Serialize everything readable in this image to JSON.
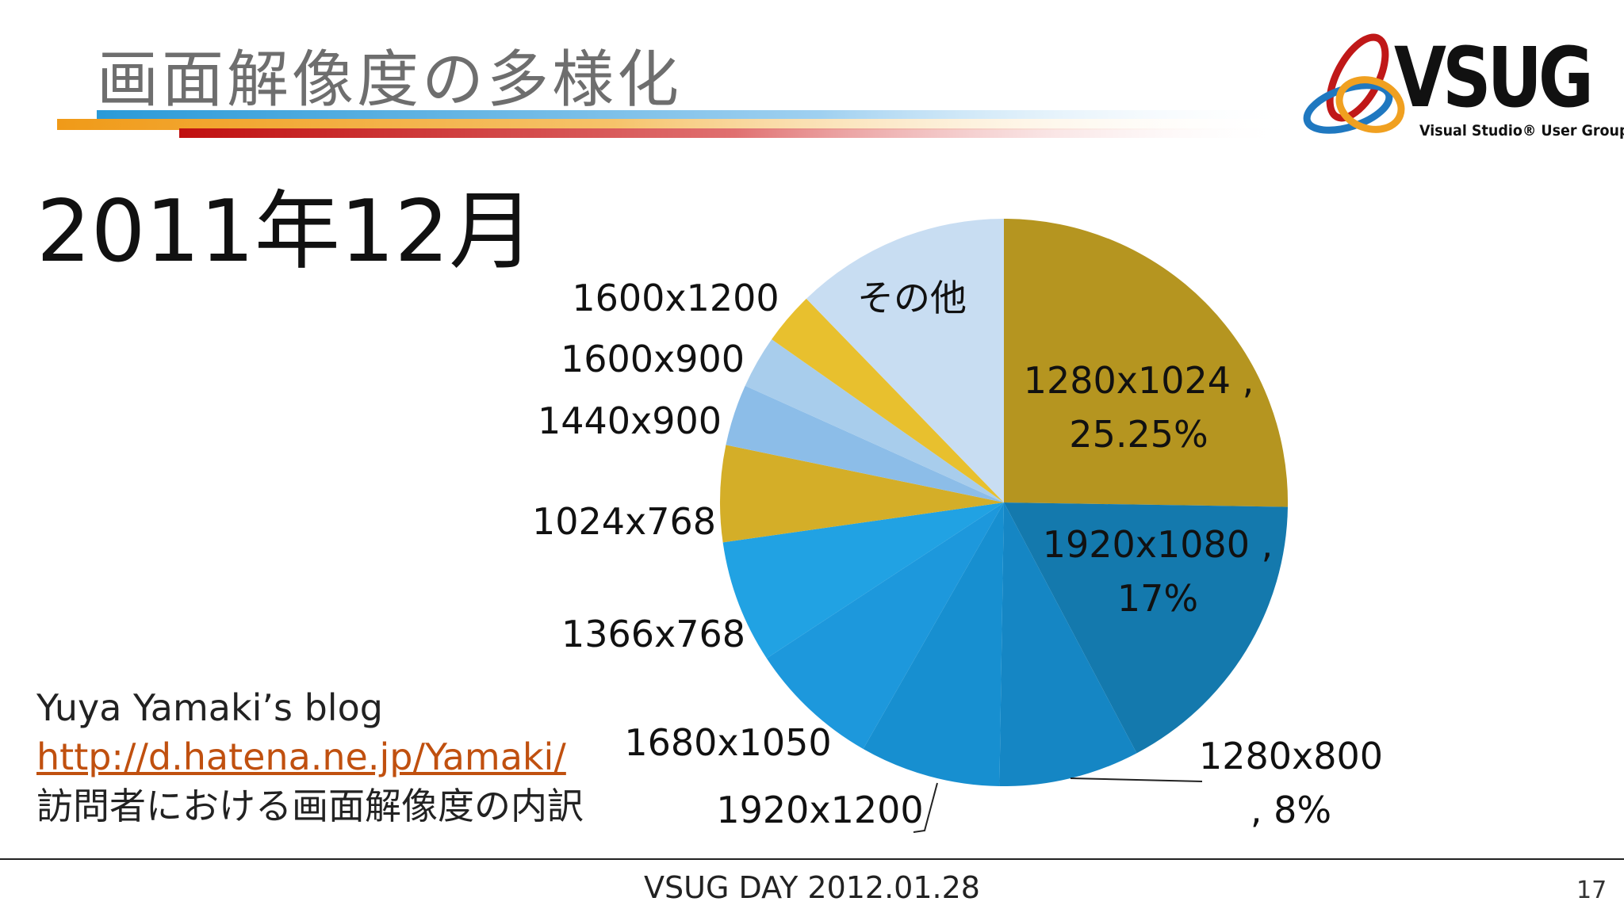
{
  "slide": {
    "title": "画面解像度の多様化",
    "subtitle": "2011年12月",
    "source_author": "Yuya Yamaki’s blog",
    "source_url": "http://d.hatena.ne.jp/Yamaki/",
    "source_caption": "訪問者における画面解像度の内訳",
    "footer": "VSUG DAY 2012.01.28",
    "page_number": "17"
  },
  "logo": {
    "name": "VSUG",
    "tagline": "Visual Studio® User Group.",
    "icon": "vsug-rings-logo"
  },
  "colors": {
    "title_bar_orange": "#f0a020",
    "title_bar_blue": "#2a9ad8",
    "title_bar_red": "#c01818",
    "link": "#c0500f"
  },
  "chart_data": {
    "type": "pie",
    "start": "12-o'clock, clockwise",
    "slices": [
      {
        "name": "1280x1024",
        "label_line1": "1280x1024 ,",
        "label_line2": "25.25%",
        "value": 25.25,
        "color": "#b59520",
        "label_inside": true
      },
      {
        "name": "1920x1080",
        "label_line1": "1920x1080 ,",
        "label_line2": "17%",
        "value": 17,
        "color": "#1479ad",
        "label_inside": true
      },
      {
        "name": "1280x800",
        "label_line1": "1280x800",
        "label_line2": ", 8%",
        "value": 8,
        "color": "#1586c4",
        "label_inside": false
      },
      {
        "name": "1920x1200",
        "label_line1": "1920x1200",
        "value": 8,
        "color": "#178fd0",
        "label_inside": false
      },
      {
        "name": "1680x1050",
        "label_line1": "1680x1050",
        "value": 7.5,
        "color": "#1d98dc",
        "label_inside": false
      },
      {
        "name": "1366x768",
        "label_line1": "1366x768",
        "value": 7,
        "color": "#21a2e3",
        "label_inside": false
      },
      {
        "name": "1024x768",
        "label_line1": "1024x768",
        "value": 5.5,
        "color": "#d4ae28",
        "label_inside": false
      },
      {
        "name": "1440x900",
        "label_line1": "1440x900",
        "value": 3.5,
        "color": "#8cbde8",
        "label_inside": false
      },
      {
        "name": "1600x900",
        "label_line1": "1600x900",
        "value": 3,
        "color": "#a8cdec",
        "label_inside": false
      },
      {
        "name": "1600x1200",
        "label_line1": "1600x1200",
        "value": 3,
        "color": "#e8c02e",
        "label_inside": false
      },
      {
        "name": "その他",
        "label_line1": "その他",
        "value": 12.25,
        "color": "#c8ddf2",
        "label_inside": true
      }
    ]
  }
}
